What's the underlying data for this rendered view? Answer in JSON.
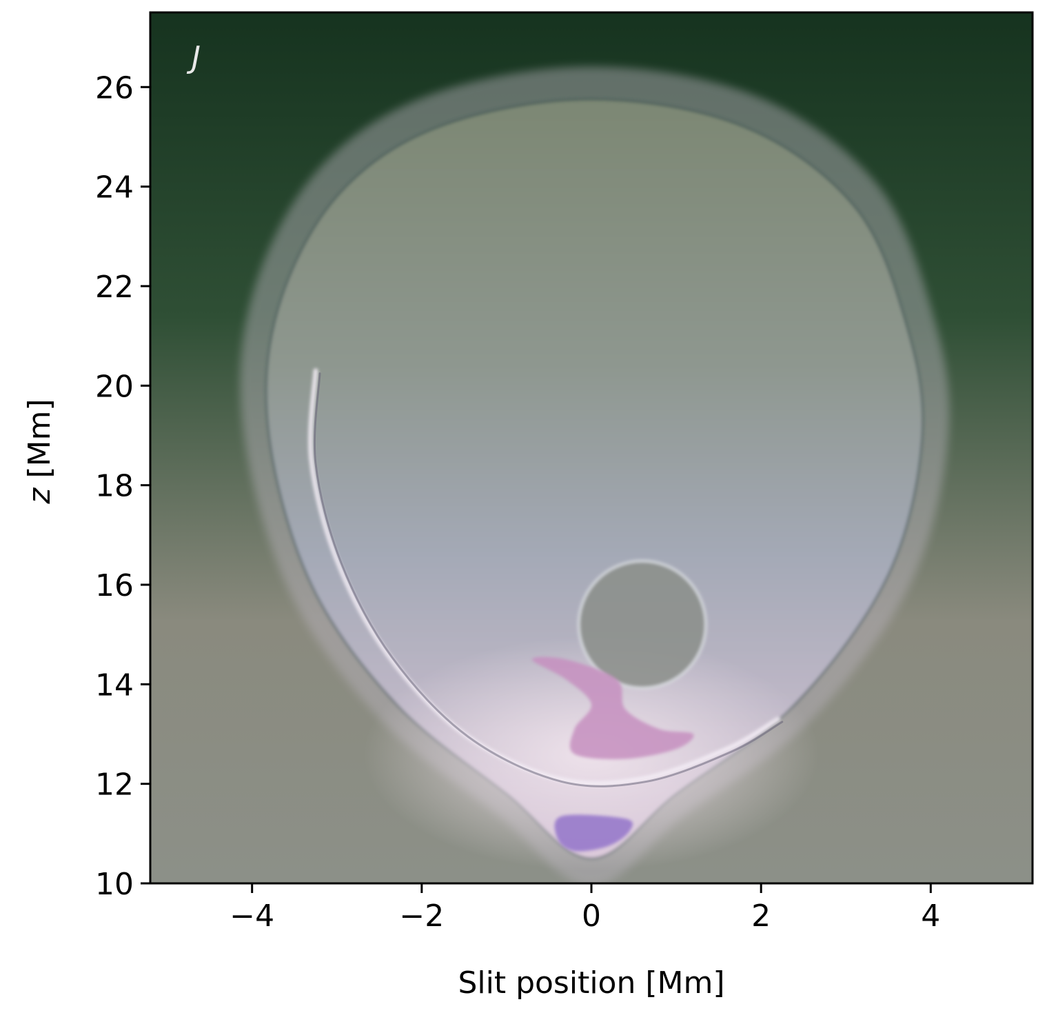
{
  "chart_data": {
    "type": "heatmap",
    "title": "",
    "panel_label": "J",
    "xlabel": "Slit position [Mm]",
    "ylabel_var": "z",
    "ylabel_unit": " [Mm]",
    "xlim": [
      -5.2,
      5.2
    ],
    "ylim": [
      10,
      27.5
    ],
    "xticks": [
      -4,
      -2,
      0,
      2,
      4
    ],
    "xtick_labels": [
      "−4",
      "−2",
      "0",
      "2",
      "4"
    ],
    "yticks": [
      10,
      12,
      14,
      16,
      18,
      20,
      22,
      24,
      26
    ],
    "ytick_labels": [
      "10",
      "12",
      "14",
      "16",
      "18",
      "20",
      "22",
      "24",
      "26"
    ],
    "grid": false,
    "colors": {
      "background_top": "#16331f",
      "background_upper": "#2f4f35",
      "background_lower": "#8a8a7e",
      "bubble_upper": "#7c8773",
      "bubble_mid": "#a4a9b6",
      "bubble_lower": "#d9c6d8",
      "pink_feature": "#c690c0",
      "purple_feature": "#9b7ecc"
    },
    "features": [
      {
        "name": "bubble",
        "outline": [
          [
            0.0,
            25.75
          ],
          [
            -1.8,
            25.2
          ],
          [
            -3.0,
            23.8
          ],
          [
            -3.7,
            21.5
          ],
          [
            -3.8,
            19.0
          ],
          [
            -3.3,
            16.0
          ],
          [
            -2.3,
            13.6
          ],
          [
            -1.0,
            11.8
          ],
          [
            0.0,
            10.5
          ],
          [
            1.0,
            11.8
          ],
          [
            2.4,
            13.6
          ],
          [
            3.5,
            16.2
          ],
          [
            3.9,
            19.0
          ],
          [
            3.7,
            21.3
          ],
          [
            3.1,
            23.6
          ],
          [
            1.8,
            25.2
          ]
        ]
      },
      {
        "name": "left-arc",
        "path": [
          [
            -3.25,
            20.3
          ],
          [
            -3.3,
            18.5
          ],
          [
            -3.0,
            16.5
          ],
          [
            -2.4,
            14.6
          ],
          [
            -1.5,
            13.0
          ],
          [
            -0.4,
            12.1
          ],
          [
            0.6,
            12.1
          ],
          [
            1.6,
            12.7
          ],
          [
            2.2,
            13.3
          ]
        ]
      },
      {
        "name": "cavity",
        "center": [
          0.6,
          15.2
        ],
        "radius": 0.75
      },
      {
        "name": "pink-structure",
        "outline": [
          [
            -0.3,
            14.5
          ],
          [
            0.3,
            14.1
          ],
          [
            0.4,
            13.5
          ],
          [
            0.8,
            13.1
          ],
          [
            1.2,
            13.0
          ],
          [
            1.0,
            12.7
          ],
          [
            0.4,
            12.5
          ],
          [
            -0.2,
            12.6
          ],
          [
            -0.2,
            13.1
          ],
          [
            0.0,
            13.6
          ],
          [
            -0.3,
            14.1
          ],
          [
            -0.7,
            14.5
          ]
        ]
      },
      {
        "name": "purple-blob",
        "outline": [
          [
            -0.35,
            11.35
          ],
          [
            0.4,
            11.3
          ],
          [
            0.45,
            11.05
          ],
          [
            0.2,
            10.75
          ],
          [
            -0.2,
            10.65
          ],
          [
            -0.4,
            10.9
          ]
        ]
      }
    ]
  }
}
